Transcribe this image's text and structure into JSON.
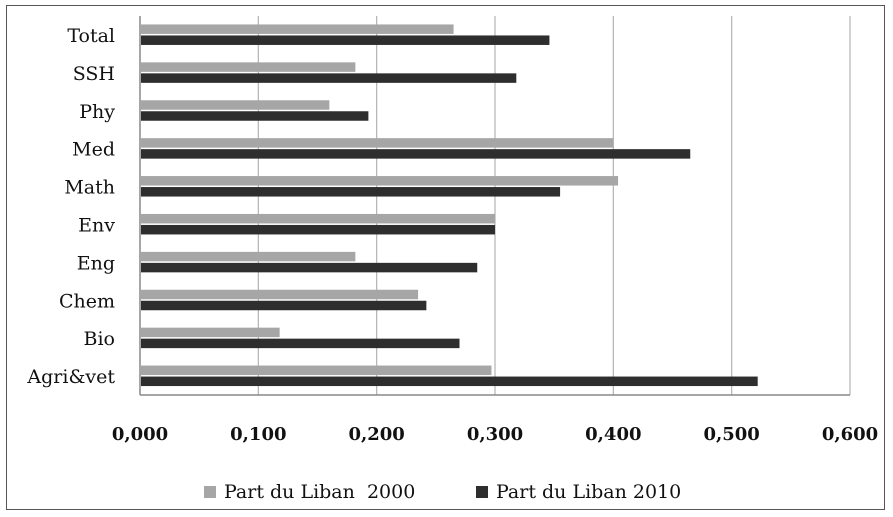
{
  "chart_data": {
    "type": "bar",
    "orientation": "horizontal",
    "categories": [
      "Total",
      "SSH",
      "Phy",
      "Med",
      "Math",
      "Env",
      "Eng",
      "Chem",
      "Bio",
      "Agri&vet"
    ],
    "series": [
      {
        "name": "Part du Liban  2000",
        "color": "#a6a6a6",
        "values": [
          0.265,
          0.182,
          0.16,
          0.4,
          0.404,
          0.3,
          0.182,
          0.235,
          0.118,
          0.297
        ]
      },
      {
        "name": "Part du Liban 2010",
        "color": "#2e2e2e",
        "values": [
          0.346,
          0.318,
          0.193,
          0.465,
          0.355,
          0.3,
          0.285,
          0.242,
          0.27,
          0.522
        ]
      }
    ],
    "xlim": [
      0,
      0.6
    ],
    "xticks": [
      "0,000",
      "0,100",
      "0,200",
      "0,300",
      "0,400",
      "0,500",
      "0,600"
    ],
    "grid": true,
    "legend": "bottom"
  }
}
